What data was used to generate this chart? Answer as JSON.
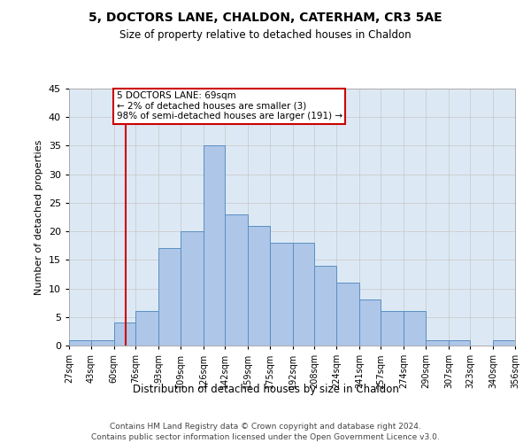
{
  "title": "5, DOCTORS LANE, CHALDON, CATERHAM, CR3 5AE",
  "subtitle": "Size of property relative to detached houses in Chaldon",
  "xlabel": "Distribution of detached houses by size in Chaldon",
  "ylabel": "Number of detached properties",
  "bin_labels": [
    "27sqm",
    "43sqm",
    "60sqm",
    "76sqm",
    "93sqm",
    "109sqm",
    "126sqm",
    "142sqm",
    "159sqm",
    "175sqm",
    "192sqm",
    "208sqm",
    "224sqm",
    "241sqm",
    "257sqm",
    "274sqm",
    "290sqm",
    "307sqm",
    "323sqm",
    "340sqm",
    "356sqm"
  ],
  "bin_edges": [
    27,
    43,
    60,
    76,
    93,
    109,
    126,
    142,
    159,
    175,
    192,
    208,
    224,
    241,
    257,
    274,
    290,
    307,
    323,
    340,
    356
  ],
  "bar_heights": [
    1,
    1,
    4,
    6,
    17,
    20,
    35,
    23,
    21,
    18,
    18,
    14,
    11,
    8,
    6,
    6,
    1,
    1,
    0,
    1
  ],
  "bar_color": "#aec6e8",
  "bar_edge_color": "#5a8fc2",
  "property_line_x": 69,
  "annotation_text": "5 DOCTORS LANE: 69sqm\n← 2% of detached houses are smaller (3)\n98% of semi-detached houses are larger (191) →",
  "annotation_box_color": "#ffffff",
  "annotation_border_color": "#cc0000",
  "ylim": [
    0,
    45
  ],
  "yticks": [
    0,
    5,
    10,
    15,
    20,
    25,
    30,
    35,
    40,
    45
  ],
  "grid_color": "#cccccc",
  "bg_color": "#dce9f5",
  "footer_line1": "Contains HM Land Registry data © Crown copyright and database right 2024.",
  "footer_line2": "Contains public sector information licensed under the Open Government Licence v3.0."
}
